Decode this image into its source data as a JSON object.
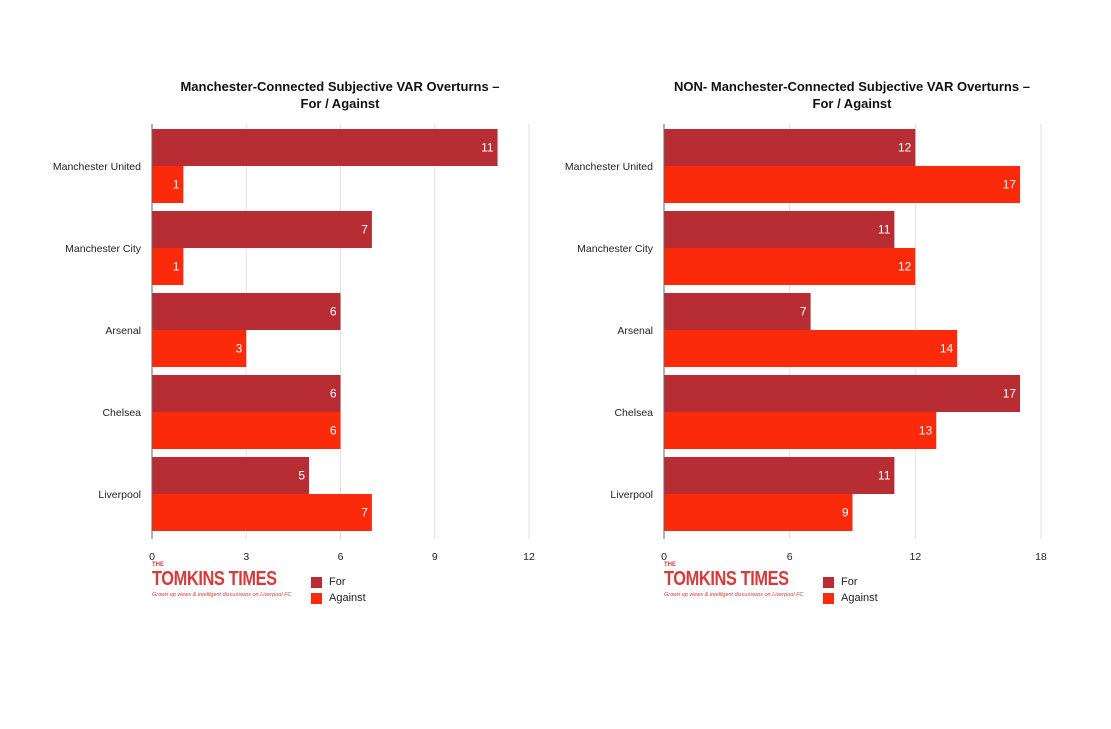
{
  "colors": {
    "for": "#b82d34",
    "against": "#fa2a0a",
    "grid": "#e2e2e2",
    "axis": "#666666"
  },
  "chart_data": [
    {
      "type": "bar",
      "orientation": "horizontal",
      "title_lines": [
        "Manchester-Connected Subjective VAR Overturns –",
        "For / Against"
      ],
      "categories": [
        "Manchester United",
        "Manchester City",
        "Arsenal",
        "Chelsea",
        "Liverpool"
      ],
      "series": [
        {
          "name": "For",
          "values": [
            11,
            7,
            6,
            6,
            5
          ]
        },
        {
          "name": "Against",
          "values": [
            1,
            1,
            3,
            6,
            7
          ]
        }
      ],
      "xlim": [
        0,
        12
      ],
      "xticks": [
        0,
        3,
        6,
        9,
        12
      ],
      "grid": true,
      "legend": "bottom",
      "logo": {
        "pre": "THE",
        "name": "TOMKINS TIMES",
        "tagline": "Grown up views & intelligent discussions on Liverpool FC"
      }
    },
    {
      "type": "bar",
      "orientation": "horizontal",
      "title_lines": [
        "NON- Manchester-Connected Subjective VAR Overturns –",
        "For / Against"
      ],
      "categories": [
        "Manchester United",
        "Manchester City",
        "Arsenal",
        "Chelsea",
        "Liverpool"
      ],
      "series": [
        {
          "name": "For",
          "values": [
            12,
            11,
            7,
            17,
            11
          ]
        },
        {
          "name": "Against",
          "values": [
            17,
            12,
            14,
            13,
            9
          ]
        }
      ],
      "xlim": [
        0,
        18
      ],
      "xticks": [
        0,
        6,
        12,
        18
      ],
      "grid": true,
      "legend": "bottom",
      "logo": {
        "pre": "THE",
        "name": "TOMKINS TIMES",
        "tagline": "Grown up views & intelligent discussions on Liverpool FC"
      }
    }
  ]
}
